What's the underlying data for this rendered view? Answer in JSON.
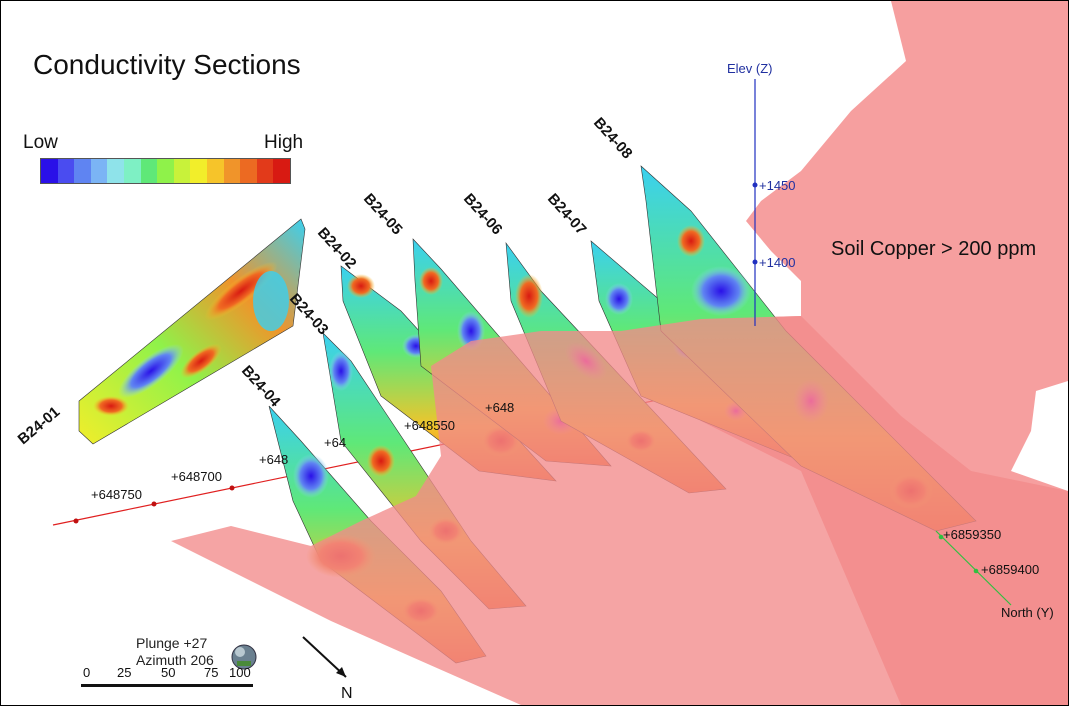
{
  "title": "Conductivity Sections",
  "legend": {
    "low_label": "Low",
    "high_label": "High",
    "colors": [
      "#2a10e8",
      "#4a4cf0",
      "#5f84f2",
      "#7bb4f5",
      "#8fe3ea",
      "#7ef0c4",
      "#5fe878",
      "#8ff24a",
      "#c8f23a",
      "#f2ee2a",
      "#f6c42a",
      "#f0942a",
      "#ec6a22",
      "#e23a1a",
      "#d81a12"
    ]
  },
  "overlay_label": "Soil Copper > 200 ppm",
  "overlay_color": "#f28a8a",
  "sections": [
    {
      "id": "B24-01"
    },
    {
      "id": "B24-02"
    },
    {
      "id": "B24-03"
    },
    {
      "id": "B24-04"
    },
    {
      "id": "B24-05"
    },
    {
      "id": "B24-06"
    },
    {
      "id": "B24-07"
    },
    {
      "id": "B24-08"
    }
  ],
  "easting_labels": [
    "+648750",
    "+648700",
    "+648",
    "+64",
    "+648550",
    "+648"
  ],
  "elevation_axis": {
    "title": "Elev (Z)",
    "ticks": [
      "+1450",
      "+1400"
    ]
  },
  "northing_axis": {
    "title": "North (Y)",
    "ticks": [
      "+6859350",
      "+6859400"
    ]
  },
  "view": {
    "plunge": "Plunge +27",
    "azimuth": "Azimuth 206"
  },
  "north_arrow": "N",
  "scale_bar": [
    "0",
    "25",
    "50",
    "75",
    "100"
  ]
}
